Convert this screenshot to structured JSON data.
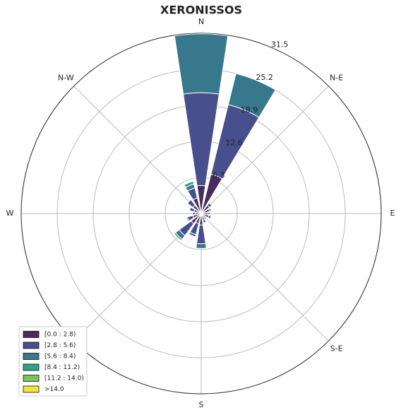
{
  "chart_data": {
    "type": "windrose",
    "title": "XERONISSOS",
    "categories": [
      "N",
      null,
      "N-E",
      null,
      "E",
      null,
      "S-E",
      null,
      "S",
      null,
      null,
      null,
      "W",
      null,
      "N-W",
      null
    ],
    "ylim": [
      0,
      31.5
    ],
    "yticks": [
      6.3,
      12.6,
      18.9,
      25.2,
      31.5
    ],
    "grid": true,
    "series": [
      {
        "name": "[0.0 : 2.8)",
        "color": "#472d5b",
        "values": [
          4.9,
          7.1,
          1.8,
          1.5,
          1.2,
          1.4,
          1.0,
          1.2,
          2.0,
          1.8,
          2.2,
          1.5,
          1.0,
          1.3,
          1.8,
          2.8
        ]
      },
      {
        "name": "[2.8 : 5.6)",
        "color": "#47508c",
        "values": [
          16.2,
          12.5,
          0.5,
          0.3,
          0.3,
          0.4,
          0.3,
          0.5,
          3.3,
          2.0,
          2.6,
          1.0,
          0.5,
          0.8,
          1.2,
          1.8
        ]
      },
      {
        "name": "[5.6 : 8.4)",
        "color": "#37788c",
        "values": [
          10.3,
          5.6,
          0,
          0,
          0,
          0,
          0,
          0,
          0.8,
          0.4,
          0.8,
          0.2,
          0,
          0,
          0,
          0.7
        ]
      },
      {
        "name": "[8.4 : 11.2)",
        "color": "#31a287",
        "values": [
          0,
          0,
          0,
          0,
          0,
          0,
          0,
          0,
          0,
          0,
          0.3,
          0,
          0,
          0,
          0,
          0.5
        ]
      },
      {
        "name": "[11.2 : 14.0)",
        "color": "#7ac25c",
        "values": [
          0,
          0,
          0,
          0,
          0,
          0,
          0,
          0,
          0,
          0,
          0,
          0,
          0,
          0,
          0,
          0
        ]
      },
      {
        "name": ">14.0",
        "color": "#f3e43a",
        "values": [
          0,
          0,
          0,
          0,
          0,
          0,
          0,
          0,
          0,
          0,
          0,
          0,
          0,
          0,
          0,
          0
        ]
      }
    ]
  }
}
